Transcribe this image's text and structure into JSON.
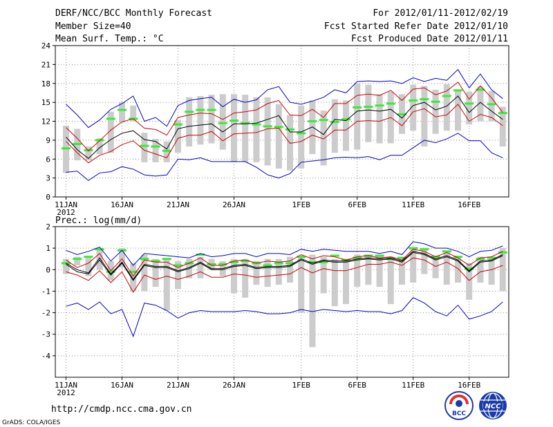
{
  "header": {
    "title": "DERF/NCC/BCC Monthly Forecast",
    "member_size": "Member Size=40",
    "variable": "Mean Surf. Temp.: °C",
    "period": "For 2012/01/11-2012/02/19",
    "started": "Fcst Started Refer Date 2012/01/10",
    "produced": "Fcst Produced Date 2012/01/11"
  },
  "footer": {
    "url": "http://cmdp.ncc.cma.gov.cn",
    "grads": "GrADS: COLA/IGES",
    "logo_bcc": "BCC",
    "logo_ncc": "NCC"
  },
  "colors": {
    "envelope": "#0000cc",
    "spread": "#cc0000",
    "mean": "#000000",
    "box": "#cccccc",
    "median": "#33ee33",
    "grid": "#888888"
  },
  "chart_data": [
    {
      "type": "line",
      "label": "Mean Surf. Temp.: °C",
      "x": [
        "11JAN",
        "12JAN",
        "13JAN",
        "14JAN",
        "15JAN",
        "16JAN",
        "17JAN",
        "18JAN",
        "19JAN",
        "20JAN",
        "21JAN",
        "22JAN",
        "23JAN",
        "24JAN",
        "25JAN",
        "26JAN",
        "27JAN",
        "28JAN",
        "29JAN",
        "30JAN",
        "31JAN",
        "1FEB",
        "2FEB",
        "3FEB",
        "4FEB",
        "5FEB",
        "6FEB",
        "7FEB",
        "8FEB",
        "9FEB",
        "10FEB",
        "11FEB",
        "12FEB",
        "13FEB",
        "14FEB",
        "15FEB",
        "16FEB",
        "17FEB",
        "18FEB",
        "19FEB"
      ],
      "x_ticks": [
        "11JAN",
        "16JAN",
        "21JAN",
        "26JAN",
        "1FEB",
        "6FEB",
        "11FEB",
        "16FEB"
      ],
      "x_year": "2012",
      "ylim": [
        0,
        24
      ],
      "y_ticks": [
        0,
        3,
        6,
        9,
        12,
        15,
        18,
        21,
        24
      ],
      "grid": true,
      "series": [
        {
          "name": "max",
          "values": [
            14.7,
            13,
            11,
            12.2,
            13.9,
            14.8,
            16,
            12,
            12.6,
            11.2,
            14.5,
            15.3,
            15.6,
            15.8,
            14.3,
            15.5,
            15,
            15.4,
            17,
            17.5,
            15,
            14.7,
            15.2,
            15.8,
            17,
            16.5,
            18.3,
            18.4,
            18.3,
            18.4,
            18,
            18.9,
            18.3,
            18.8,
            18.5,
            20.2,
            17.3,
            19.5,
            17,
            15.6
          ]
        },
        {
          "name": "upper",
          "values": [
            11,
            9.3,
            7.3,
            8.9,
            10.6,
            11.9,
            12.4,
            10.9,
            10.7,
            9.8,
            12.6,
            13,
            13.3,
            13.2,
            12.3,
            13.3,
            13.5,
            13.8,
            14.8,
            15.3,
            13,
            12.9,
            13.9,
            12.6,
            14.8,
            14.8,
            16.1,
            16.3,
            16.1,
            16.9,
            15.3,
            17.1,
            17.3,
            16.2,
            16.8,
            18.2,
            15.5,
            17.6,
            15.7,
            13.4
          ]
        },
        {
          "name": "mean",
          "values": [
            9.5,
            7.5,
            6.1,
            7.8,
            9.1,
            10.1,
            10.5,
            9.1,
            8.8,
            7.6,
            10.8,
            11.2,
            11.4,
            11.6,
            10.3,
            11.6,
            11.6,
            11.7,
            12.3,
            12.9,
            10.3,
            10.3,
            11.1,
            9.9,
            12.3,
            12.1,
            13.6,
            13.8,
            13.6,
            13.9,
            12.5,
            14.5,
            15,
            13.8,
            14.4,
            16,
            13.4,
            15,
            13.6,
            12.3
          ]
        },
        {
          "name": "lower",
          "values": [
            8.8,
            7,
            5.4,
            6.6,
            7.2,
            8.3,
            8.9,
            7.4,
            6.8,
            6.2,
            9.3,
            9.8,
            9.8,
            10.4,
            8.9,
            10,
            10.1,
            10.2,
            10.8,
            10.9,
            8.5,
            8.8,
            9.8,
            9.2,
            10.6,
            10.6,
            12,
            12.1,
            12,
            12.6,
            11.3,
            13.5,
            14,
            12.7,
            13,
            14.7,
            12,
            13.1,
            12.6,
            11.3
          ]
        },
        {
          "name": "min",
          "values": [
            3.9,
            4.1,
            2.6,
            3.8,
            4,
            4.8,
            4.4,
            3.5,
            3.3,
            3.5,
            6,
            5.9,
            6.2,
            5.6,
            5.6,
            5.6,
            5.6,
            4.7,
            3.5,
            3,
            3.7,
            5.5,
            5.7,
            5.9,
            6.2,
            6.3,
            6.2,
            6.4,
            5.9,
            6.6,
            6.6,
            7.8,
            9,
            8.6,
            9.2,
            10.1,
            8.9,
            8.9,
            7,
            6.2
          ]
        }
      ],
      "boxes": {
        "box_low": [
          3.8,
          5.8,
          5.8,
          6.8,
          7,
          11.8,
          12,
          5.5,
          5.5,
          5.5,
          7,
          8,
          8.3,
          8.5,
          7.5,
          5.5,
          5.5,
          5.5,
          5,
          4.5,
          4.2,
          4.5,
          6.8,
          5,
          7,
          7.3,
          7.5,
          8.7,
          8.5,
          8.5,
          10,
          10.5,
          8,
          10,
          10.5,
          10.5,
          11.5,
          12,
          12,
          8
        ],
        "box_high": [
          11.3,
          10.8,
          8,
          9.3,
          13.5,
          15,
          14.5,
          10.2,
          9.2,
          8.8,
          12.2,
          15.8,
          16,
          16.2,
          16.3,
          16.3,
          16.2,
          15.8,
          15.8,
          14.7,
          13,
          14.5,
          15.3,
          13.7,
          15.5,
          15.3,
          18,
          17.8,
          16.3,
          16.7,
          16.3,
          17.8,
          17.6,
          17,
          17.9,
          17,
          16.7,
          17.5,
          16.8,
          14.3
        ],
        "median": [
          7.7,
          8.4,
          7.4,
          9,
          12.4,
          13.8,
          12.4,
          8.1,
          8,
          7.3,
          11.5,
          13.5,
          13.8,
          13.8,
          11.7,
          12.1,
          11.7,
          11.5,
          11.2,
          11.1,
          10.7,
          10.1,
          12,
          12.2,
          11.9,
          12.3,
          14.2,
          14.3,
          14.5,
          14.8,
          13.1,
          15.3,
          15.5,
          15.1,
          16,
          16.9,
          14.8,
          17,
          14.7,
          13.3
        ]
      }
    },
    {
      "type": "line",
      "label": "Prec.: log(mm/d)",
      "x": [
        "11JAN",
        "12JAN",
        "13JAN",
        "14JAN",
        "15JAN",
        "16JAN",
        "17JAN",
        "18JAN",
        "19JAN",
        "20JAN",
        "21JAN",
        "22JAN",
        "23JAN",
        "24JAN",
        "25JAN",
        "26JAN",
        "27JAN",
        "28JAN",
        "29JAN",
        "30JAN",
        "31JAN",
        "1FEB",
        "2FEB",
        "3FEB",
        "4FEB",
        "5FEB",
        "6FEB",
        "7FEB",
        "8FEB",
        "9FEB",
        "10FEB",
        "11FEB",
        "12FEB",
        "13FEB",
        "14FEB",
        "15FEB",
        "16FEB",
        "17FEB",
        "18FEB",
        "19FEB"
      ],
      "x_ticks": [
        "11JAN",
        "16JAN",
        "21JAN",
        "26JAN",
        "1FEB",
        "6FEB",
        "11FEB",
        "16FEB"
      ],
      "x_year": "2012",
      "ylim": [
        -5,
        2
      ],
      "y_ticks": [
        -4,
        -3,
        -2,
        -1,
        0,
        1,
        2
      ],
      "grid": true,
      "series": [
        {
          "name": "max",
          "values": [
            0.9,
            0.7,
            0.85,
            1.05,
            0.4,
            0.9,
            0.2,
            0.75,
            0.7,
            0.65,
            0.6,
            0.55,
            0.75,
            0.6,
            0.65,
            0.75,
            0.75,
            0.6,
            0.75,
            0.75,
            0.7,
            0.95,
            0.85,
            0.95,
            0.9,
            0.85,
            0.85,
            0.85,
            0.75,
            0.85,
            0.7,
            1.3,
            1.2,
            1,
            1,
            0.85,
            0.6,
            0.85,
            0.9,
            1.1
          ]
        },
        {
          "name": "upper",
          "values": [
            0.45,
            0.1,
            0.3,
            0.75,
            -0.05,
            0.5,
            -0.3,
            0.45,
            0.35,
            0.35,
            0.1,
            0.3,
            0.55,
            0.2,
            0.2,
            0.4,
            0.45,
            0.3,
            0.4,
            0.35,
            0.4,
            0.7,
            0.5,
            0.65,
            0.6,
            0.45,
            0.6,
            0.65,
            0.55,
            0.6,
            0.45,
            0.95,
            0.85,
            0.6,
            0.8,
            0.55,
            0.2,
            0.55,
            0.6,
            0.85
          ]
        },
        {
          "name": "mean",
          "values": [
            0.25,
            -0.1,
            -0.2,
            0.45,
            -0.25,
            0.3,
            -0.5,
            0.2,
            0.1,
            0.1,
            -0.1,
            0.05,
            0.3,
            0,
            0,
            0.15,
            0.2,
            0.05,
            0.1,
            0.1,
            0.15,
            0.45,
            0.25,
            0.4,
            0.35,
            0.35,
            0.45,
            0.5,
            0.45,
            0.5,
            0.35,
            0.8,
            0.7,
            0.45,
            0.6,
            0.4,
            -0.1,
            0.35,
            0.4,
            0.65
          ]
        },
        {
          "name": "lower",
          "values": [
            -0.1,
            -0.25,
            -0.5,
            -0.05,
            -0.6,
            -0.1,
            -1.05,
            -0.25,
            -0.45,
            -0.3,
            -0.45,
            -0.3,
            -0.1,
            -0.35,
            -0.35,
            -0.2,
            -0.25,
            -0.35,
            -0.3,
            -0.25,
            -0.2,
            0.1,
            -0.15,
            0.05,
            -0.05,
            -0.05,
            0.1,
            0.25,
            0.25,
            0.35,
            0.2,
            0.55,
            0.45,
            0.15,
            0.35,
            0.05,
            -0.5,
            -0.1,
            0,
            0.2
          ]
        },
        {
          "name": "min",
          "values": [
            -1.7,
            -1.55,
            -1.85,
            -1.5,
            -2.05,
            -1.85,
            -3.1,
            -1.55,
            -1.65,
            -1.9,
            -2.25,
            -2,
            -1.9,
            -1.95,
            -1.95,
            -1.95,
            -1.9,
            -1.95,
            -2.05,
            -2.05,
            -2,
            -1.85,
            -1.95,
            -1.85,
            -1.9,
            -1.95,
            -1.9,
            -1.95,
            -1.95,
            -2.05,
            -1.9,
            -1.3,
            -1.55,
            -1.95,
            -2.15,
            -1.65,
            -2.3,
            -2.15,
            -1.95,
            -1.5
          ]
        },
        {
          "name": "total",
          "values": [
            0.3,
            0,
            -0.15,
            0.55,
            -0.2,
            0.35,
            -0.45,
            0.25,
            0.15,
            0.15,
            -0.05,
            0.1,
            0.35,
            0.05,
            0.05,
            0.2,
            0.25,
            0.1,
            0.15,
            0.15,
            0.2,
            0.5,
            0.3,
            0.45,
            0.4,
            0.4,
            0.5,
            0.55,
            0.5,
            0.55,
            0.4,
            0.85,
            0.75,
            0.5,
            0.65,
            0.45,
            -0.05,
            0.4,
            0.45,
            0.7
          ]
        }
      ],
      "boxes": {
        "box_low": [
          -0.2,
          0.2,
          -0.3,
          0,
          -0.5,
          0.1,
          -1,
          -1,
          -0.8,
          -1.9,
          -0.9,
          -0.4,
          -0.4,
          0,
          -0.3,
          -1.1,
          -1.3,
          -0.7,
          -0.8,
          -0.7,
          -0.6,
          -2,
          -3.6,
          -1.1,
          -1.7,
          -1.6,
          -0.8,
          -0.7,
          -0.8,
          -1.6,
          -0.7,
          -0.6,
          -0.2,
          -0.4,
          -0.7,
          -0.6,
          -1.4,
          -0.6,
          -0.7,
          -1
        ],
        "box_high": [
          0.5,
          0.6,
          0.6,
          1,
          0.4,
          1,
          0.3,
          0.7,
          0.5,
          0.5,
          0.4,
          0.5,
          0.6,
          0.5,
          0.4,
          0.5,
          0.5,
          0.4,
          0.5,
          0.5,
          0.6,
          0.6,
          0.7,
          0.6,
          0.5,
          0.5,
          0.7,
          0.7,
          0.6,
          0.6,
          0.5,
          1,
          1,
          0.6,
          0.8,
          0.6,
          0.3,
          0.6,
          0.6,
          1
        ],
        "median": [
          0.3,
          0.5,
          0.6,
          0.95,
          -0.1,
          0.9,
          -0.1,
          0.5,
          0.4,
          0.5,
          0.2,
          0.3,
          0.7,
          0.25,
          0.25,
          0.35,
          0.4,
          0.3,
          0.2,
          0.3,
          0.3,
          0.6,
          0.35,
          0.35,
          0.65,
          0.45,
          0.55,
          0.65,
          0.65,
          0.5,
          0.55,
          1,
          0.95,
          0.6,
          0.85,
          0.6,
          0.05,
          0.5,
          0.55,
          0.8
        ]
      }
    }
  ]
}
